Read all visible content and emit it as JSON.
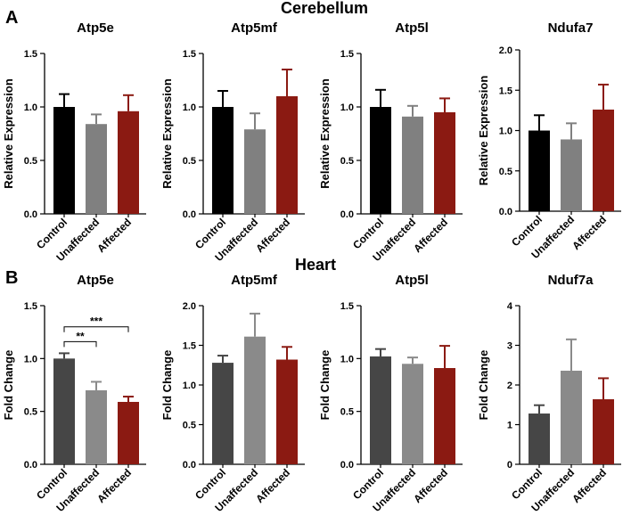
{
  "figure": {
    "sections": [
      {
        "letter": "A",
        "title": "Cerebellum",
        "ylabel": "Relative Expression"
      },
      {
        "letter": "B",
        "title": "Heart",
        "ylabel": "Fold Change"
      }
    ]
  },
  "chart_data": [
    {
      "type": "bar",
      "section": "Cerebellum",
      "title": "Atp5e",
      "ylabel": "Relative Expression",
      "categories": [
        "Control",
        "Unaffected",
        "Affected"
      ],
      "values": [
        1.0,
        0.84,
        0.96
      ],
      "errors": [
        0.12,
        0.09,
        0.15
      ],
      "colors": [
        "#000000",
        "#808080",
        "#8b1a12"
      ],
      "ylim": [
        0,
        1.5
      ],
      "yticks": [
        "0.0",
        "0.5",
        "1.0",
        "1.5"
      ],
      "significance": []
    },
    {
      "type": "bar",
      "section": "Cerebellum",
      "title": "Atp5mf",
      "ylabel": "Relative Expression",
      "categories": [
        "Control",
        "Unaffected",
        "Affected"
      ],
      "values": [
        1.0,
        0.79,
        1.1
      ],
      "errors": [
        0.15,
        0.15,
        0.25
      ],
      "colors": [
        "#000000",
        "#808080",
        "#8b1a12"
      ],
      "ylim": [
        0,
        1.5
      ],
      "yticks": [
        "0.0",
        "0.5",
        "1.0",
        "1.5"
      ],
      "significance": []
    },
    {
      "type": "bar",
      "section": "Cerebellum",
      "title": "Atp5l",
      "ylabel": "Relative Expression",
      "categories": [
        "Control",
        "Unaffected",
        "Affected"
      ],
      "values": [
        1.0,
        0.91,
        0.95
      ],
      "errors": [
        0.16,
        0.1,
        0.13
      ],
      "colors": [
        "#000000",
        "#808080",
        "#8b1a12"
      ],
      "ylim": [
        0,
        1.5
      ],
      "yticks": [
        "0.0",
        "0.5",
        "1.0",
        "1.5"
      ],
      "significance": []
    },
    {
      "type": "bar",
      "section": "Cerebellum",
      "title": "Ndufa7",
      "ylabel": "Relative Expression",
      "categories": [
        "Control",
        "Unaffected",
        "Affected"
      ],
      "values": [
        1.0,
        0.89,
        1.26
      ],
      "errors": [
        0.19,
        0.2,
        0.31
      ],
      "colors": [
        "#000000",
        "#808080",
        "#8b1a12"
      ],
      "ylim": [
        0,
        2.0
      ],
      "yticks": [
        "0.0",
        "0.5",
        "1.0",
        "1.5",
        "2.0"
      ],
      "significance": []
    },
    {
      "type": "bar",
      "section": "Heart",
      "title": "Atp5e",
      "ylabel": "Fold Change",
      "categories": [
        "Control",
        "Unaffected",
        "Affected"
      ],
      "values": [
        1.0,
        0.7,
        0.59
      ],
      "errors": [
        0.05,
        0.08,
        0.05
      ],
      "colors": [
        "#464646",
        "#8a8a8a",
        "#8b1a12"
      ],
      "ylim": [
        0,
        1.5
      ],
      "yticks": [
        "0.0",
        "0.5",
        "1.0",
        "1.5"
      ],
      "significance": [
        {
          "from": 0,
          "to": 1,
          "label": "**",
          "y": 1.16
        },
        {
          "from": 0,
          "to": 2,
          "label": "***",
          "y": 1.3
        }
      ]
    },
    {
      "type": "bar",
      "section": "Heart",
      "title": "Atp5mf",
      "ylabel": "Fold Change",
      "categories": [
        "Control",
        "Unaffected",
        "Affected"
      ],
      "values": [
        1.28,
        1.61,
        1.32
      ],
      "errors": [
        0.09,
        0.29,
        0.16
      ],
      "colors": [
        "#464646",
        "#8a8a8a",
        "#8b1a12"
      ],
      "ylim": [
        0,
        2.0
      ],
      "yticks": [
        "0.0",
        "0.5",
        "1.0",
        "1.5",
        "2.0"
      ],
      "significance": []
    },
    {
      "type": "bar",
      "section": "Heart",
      "title": "Atp5l",
      "ylabel": "Fold Change",
      "categories": [
        "Control",
        "Unaffected",
        "Affected"
      ],
      "values": [
        1.02,
        0.95,
        0.91
      ],
      "errors": [
        0.07,
        0.06,
        0.21
      ],
      "colors": [
        "#464646",
        "#8a8a8a",
        "#8b1a12"
      ],
      "ylim": [
        0,
        1.5
      ],
      "yticks": [
        "0.0",
        "0.5",
        "1.0",
        "1.5"
      ],
      "significance": []
    },
    {
      "type": "bar",
      "section": "Heart",
      "title": "Nduf7a",
      "ylabel": "Fold Change",
      "categories": [
        "Control",
        "Unaffected",
        "Affected"
      ],
      "values": [
        1.28,
        2.36,
        1.64
      ],
      "errors": [
        0.21,
        0.79,
        0.53
      ],
      "colors": [
        "#464646",
        "#8a8a8a",
        "#8b1a12"
      ],
      "ylim": [
        0,
        4
      ],
      "yticks": [
        "0",
        "1",
        "2",
        "3",
        "4"
      ],
      "significance": []
    }
  ]
}
